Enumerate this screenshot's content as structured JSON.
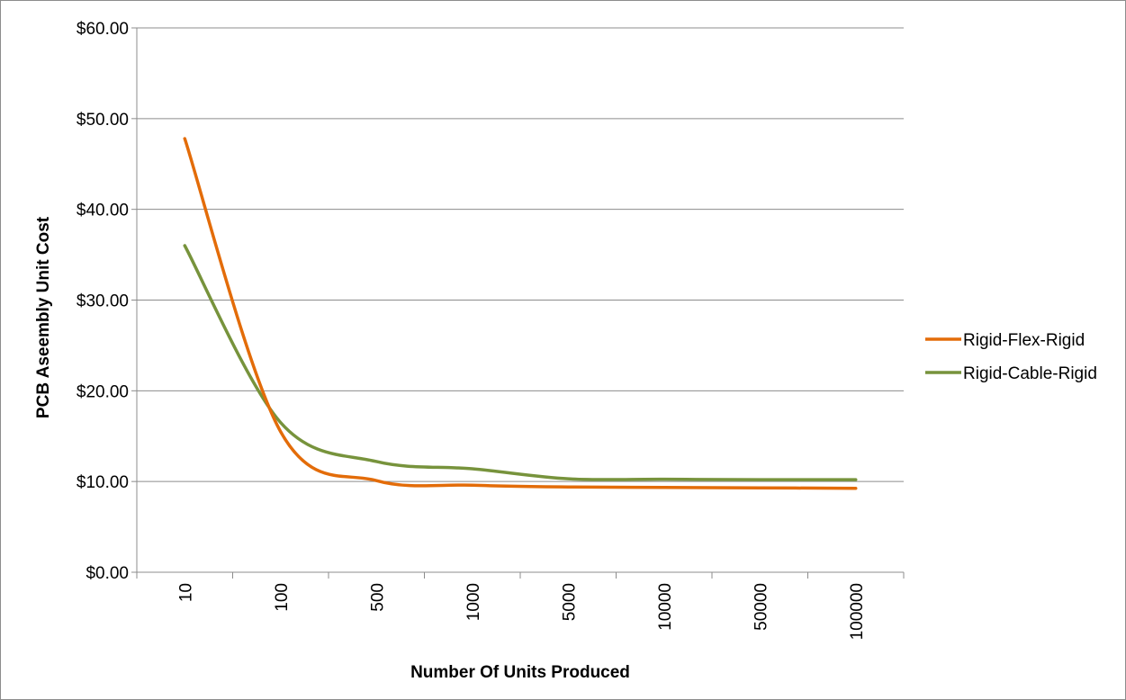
{
  "chart_data": {
    "type": "line",
    "title": "",
    "xlabel": "Number Of Units Produced",
    "ylabel": "PCB Aseembly Unit Cost",
    "categories": [
      "10",
      "100",
      "500",
      "1000",
      "5000",
      "10000",
      "50000",
      "100000"
    ],
    "y_tick_labels": [
      "$0.00",
      "$10.00",
      "$20.00",
      "$30.00",
      "$40.00",
      "$50.00",
      "$60.00"
    ],
    "ylim": [
      0,
      60
    ],
    "grid": "horizontal",
    "legend_position": "right",
    "smooth": true,
    "series": [
      {
        "name": "Rigid-Flex-Rigid",
        "color": "#E36C09",
        "values": [
          47.8,
          15.5,
          10.1,
          9.6,
          9.4,
          9.35,
          9.3,
          9.25
        ]
      },
      {
        "name": "Rigid-Cable-Rigid",
        "color": "#77933C",
        "values": [
          36.0,
          16.5,
          12.2,
          11.4,
          10.3,
          10.25,
          10.2,
          10.2
        ]
      }
    ]
  }
}
